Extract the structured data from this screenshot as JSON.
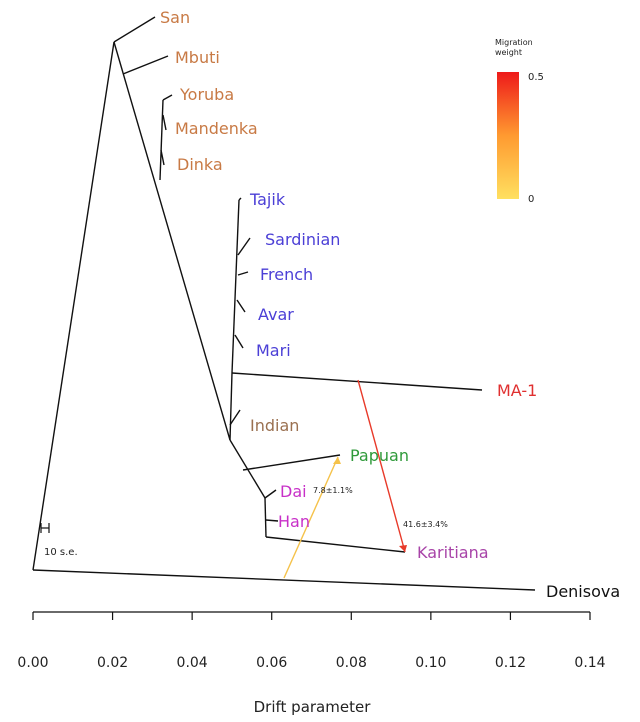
{
  "chart_data": {
    "type": "tree",
    "xlabel": "Drift parameter",
    "xlim": [
      0.0,
      0.14
    ],
    "x_ticks": [
      "0.00",
      "0.02",
      "0.04",
      "0.06",
      "0.08",
      "0.10",
      "0.12",
      "0.14"
    ],
    "scale_bar_label": "10 s.e.",
    "legend": {
      "title_line1": "Migration",
      "title_line2": "weight",
      "max_label": "0.5",
      "min_label": "0",
      "position": "top-right"
    },
    "colors": {
      "african": "#c87a45",
      "european": "#4b3fd6",
      "ma1": "#e03030",
      "indian": "#9a7050",
      "papuan": "#2f9a3a",
      "east_asian": "#c830c8",
      "karitiana": "#a844a8",
      "denisova": "#111111"
    },
    "leaves": [
      {
        "name": "San",
        "drift": 0.032,
        "group": "african"
      },
      {
        "name": "Mbuti",
        "drift": 0.034,
        "group": "african"
      },
      {
        "name": "Yoruba",
        "drift": 0.034,
        "group": "african"
      },
      {
        "name": "Mandenka",
        "drift": 0.033,
        "group": "african"
      },
      {
        "name": "Dinka",
        "drift": 0.033,
        "group": "african"
      },
      {
        "name": "Tajik",
        "drift": 0.052,
        "group": "european"
      },
      {
        "name": "Sardinian",
        "drift": 0.054,
        "group": "european"
      },
      {
        "name": "French",
        "drift": 0.054,
        "group": "european"
      },
      {
        "name": "Avar",
        "drift": 0.053,
        "group": "european"
      },
      {
        "name": "Mari",
        "drift": 0.053,
        "group": "european"
      },
      {
        "name": "MA-1",
        "drift": 0.113,
        "group": "ma1"
      },
      {
        "name": "Indian",
        "drift": 0.052,
        "group": "indian"
      },
      {
        "name": "Papuan",
        "drift": 0.077,
        "group": "papuan"
      },
      {
        "name": "Dai",
        "drift": 0.059,
        "group": "east_asian"
      },
      {
        "name": "Han",
        "drift": 0.059,
        "group": "east_asian"
      },
      {
        "name": "Karitiana",
        "drift": 0.094,
        "group": "karitiana"
      },
      {
        "name": "Denisova",
        "drift": 0.132,
        "group": "denisova"
      }
    ],
    "migration_edges": [
      {
        "from": "MA-1 branch",
        "to": "Karitiana",
        "weight_label": "41.6±3.4%",
        "color": "#e83a2a"
      },
      {
        "from": "Papuan branch",
        "to": "Denisova branch",
        "weight_label": "7.8±1.1%",
        "color": "#f5c24a"
      }
    ]
  }
}
